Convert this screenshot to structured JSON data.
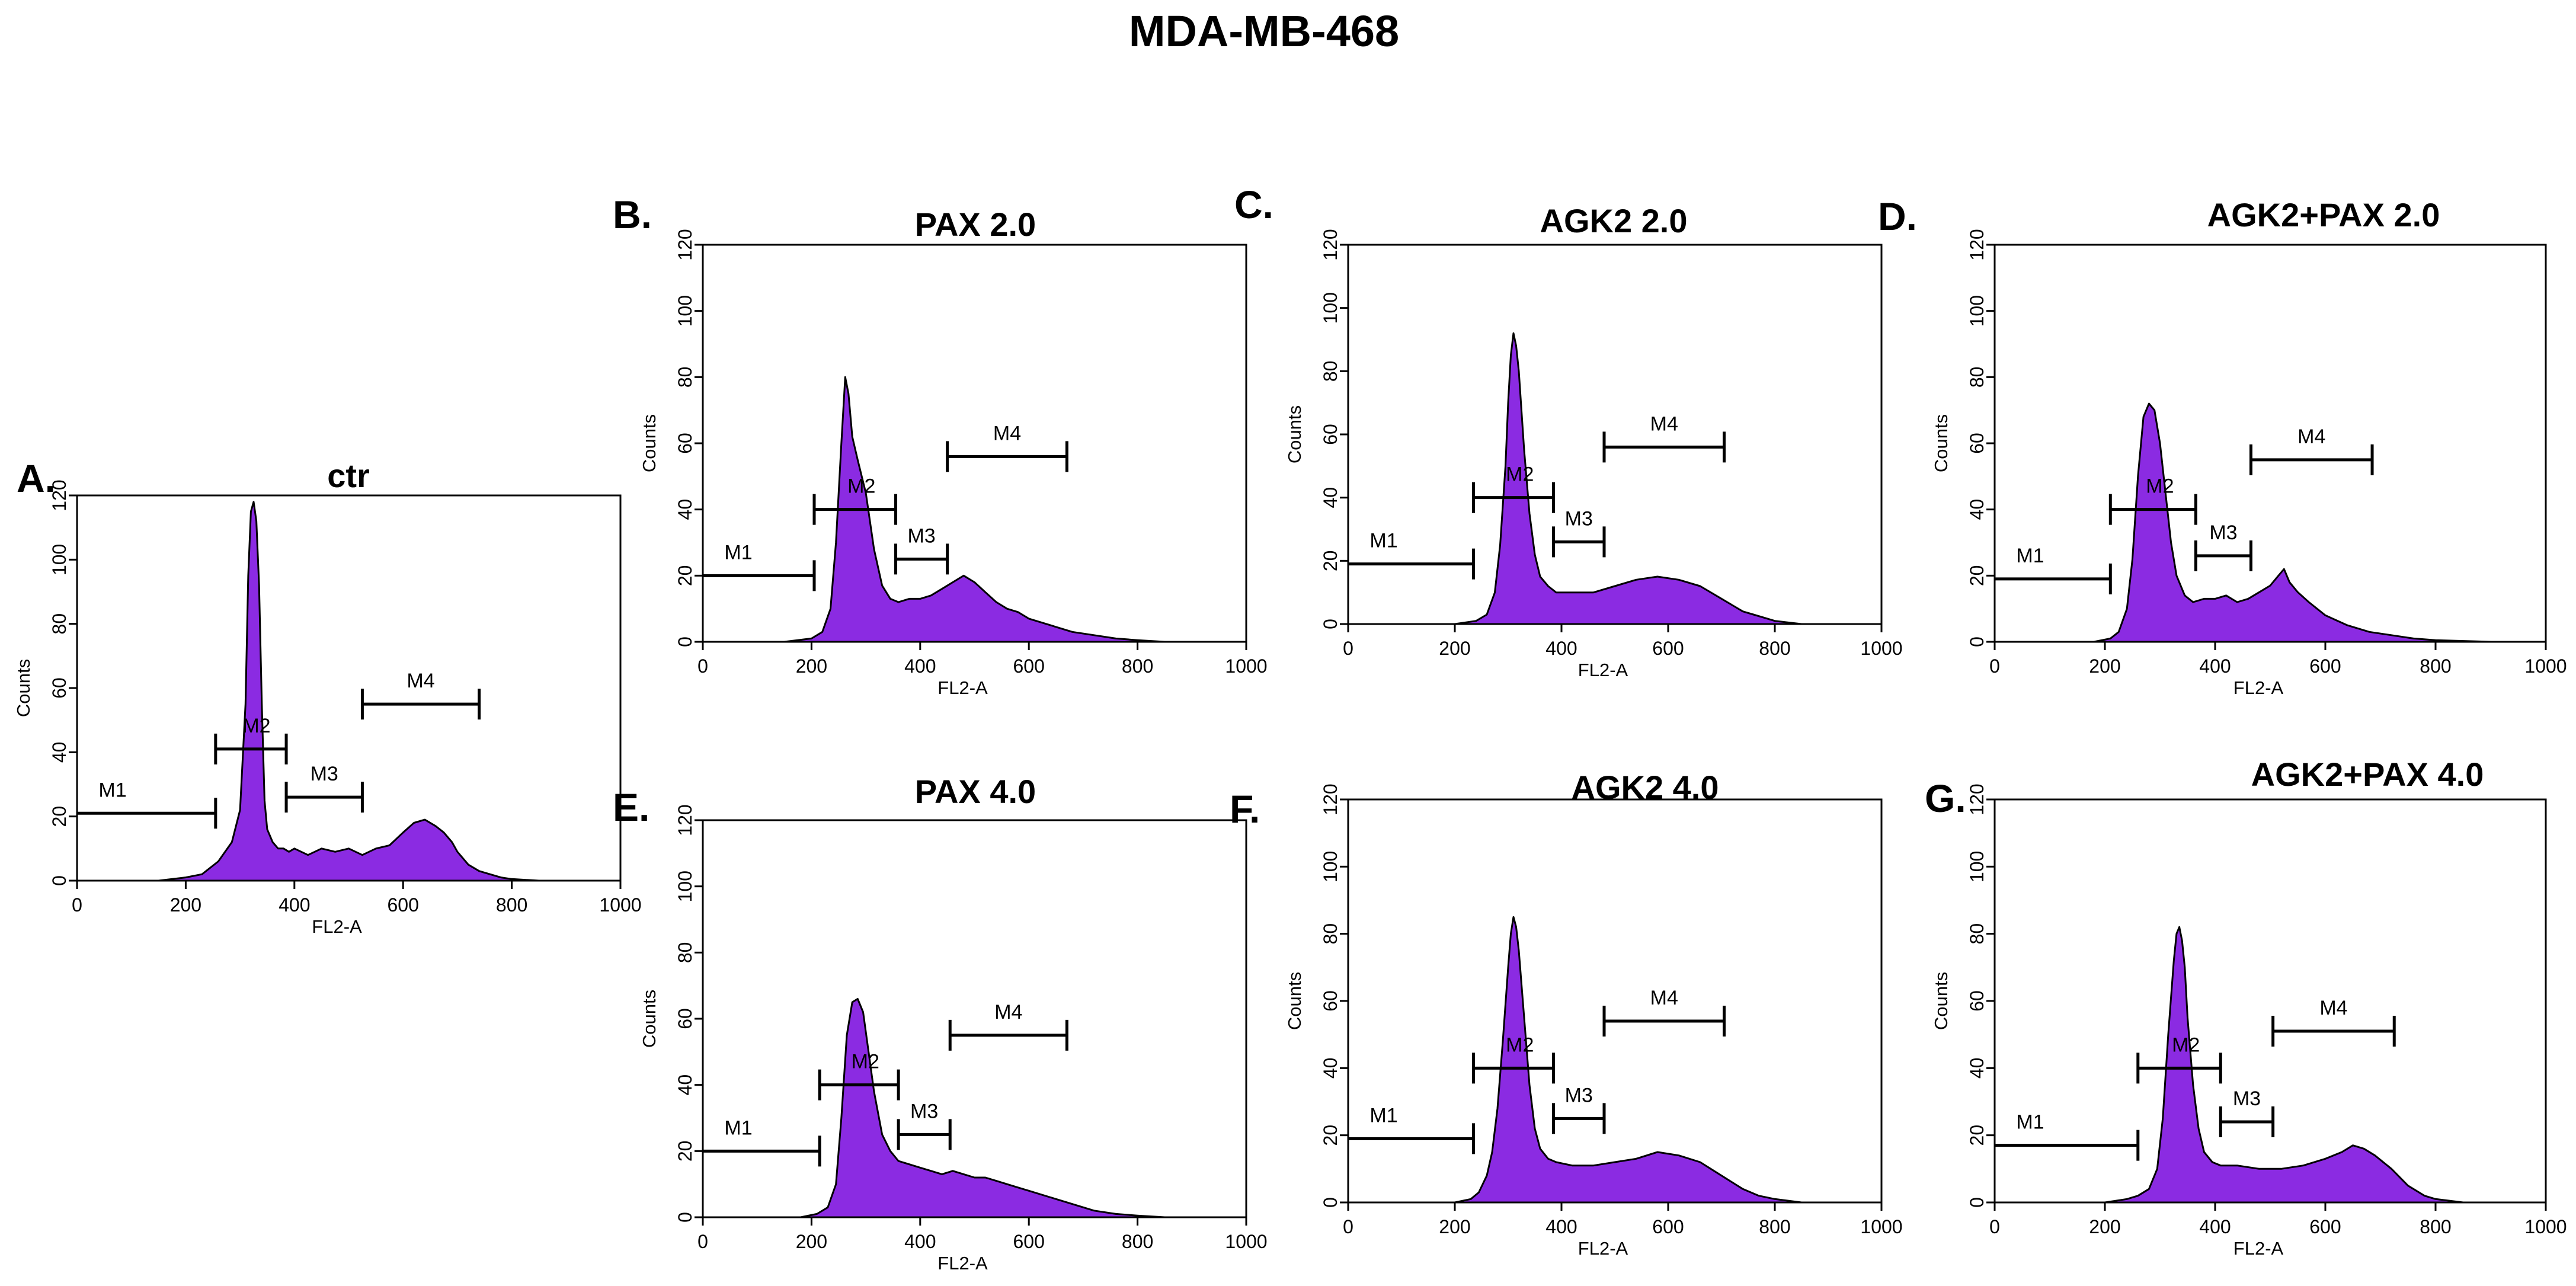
{
  "figure_title": "MDA-MB-468",
  "colors": {
    "fill": "#8B2BE2",
    "edge": "#000000",
    "background": "#ffffff"
  },
  "chart_data": [
    {
      "id": "A",
      "panel_label": "A.",
      "title": "ctr",
      "type": "area",
      "xlabel": "FL2-A",
      "ylabel": "Counts",
      "xlim": [
        0,
        1000
      ],
      "ylim": [
        0,
        120
      ],
      "xticks": [
        0,
        200,
        400,
        600,
        800,
        1000
      ],
      "yticks": [
        0,
        20,
        40,
        60,
        80,
        100,
        120
      ],
      "x": [
        150,
        200,
        230,
        260,
        285,
        300,
        310,
        315,
        320,
        325,
        330,
        335,
        340,
        345,
        350,
        360,
        370,
        380,
        390,
        400,
        425,
        450,
        475,
        500,
        525,
        550,
        575,
        600,
        620,
        640,
        660,
        675,
        690,
        700,
        720,
        740,
        760,
        780,
        800,
        850
      ],
      "values": [
        0,
        1,
        2,
        6,
        12,
        22,
        55,
        95,
        115,
        118,
        112,
        92,
        55,
        25,
        16,
        12,
        10,
        10,
        9,
        10,
        8,
        10,
        9,
        10,
        8,
        10,
        11,
        15,
        18,
        19,
        17,
        15,
        12,
        9,
        5,
        3,
        2,
        1,
        0.5,
        0
      ],
      "markers": [
        {
          "label": "M1",
          "start": 0,
          "end": 255,
          "level": 21
        },
        {
          "label": "M2",
          "start": 255,
          "end": 385,
          "level": 41
        },
        {
          "label": "M3",
          "start": 385,
          "end": 525,
          "level": 26
        },
        {
          "label": "M4",
          "start": 525,
          "end": 740,
          "level": 55
        }
      ]
    },
    {
      "id": "B",
      "panel_label": "B.",
      "title": "PAX 2.0",
      "type": "area",
      "xlabel": "FL2-A",
      "ylabel": "Counts",
      "xlim": [
        0,
        1000
      ],
      "ylim": [
        0,
        120
      ],
      "xticks": [
        0,
        200,
        400,
        600,
        800,
        1000
      ],
      "yticks": [
        0,
        20,
        40,
        60,
        80,
        100,
        120
      ],
      "x": [
        150,
        200,
        220,
        235,
        245,
        255,
        262,
        268,
        275,
        285,
        300,
        315,
        330,
        345,
        360,
        380,
        400,
        420,
        440,
        460,
        480,
        500,
        520,
        540,
        560,
        580,
        600,
        640,
        680,
        720,
        760,
        800,
        850
      ],
      "values": [
        0,
        1,
        3,
        10,
        30,
        60,
        80,
        75,
        62,
        55,
        45,
        28,
        17,
        13,
        12,
        13,
        13,
        14,
        16,
        18,
        20,
        18,
        15,
        12,
        10,
        9,
        7,
        5,
        3,
        2,
        1,
        0.5,
        0
      ],
      "markers": [
        {
          "label": "M1",
          "start": 0,
          "end": 205,
          "level": 20
        },
        {
          "label": "M2",
          "start": 205,
          "end": 355,
          "level": 40
        },
        {
          "label": "M3",
          "start": 355,
          "end": 450,
          "level": 25
        },
        {
          "label": "M4",
          "start": 450,
          "end": 670,
          "level": 56
        }
      ]
    },
    {
      "id": "C",
      "panel_label": "C.",
      "title": "AGK2 2.0",
      "type": "area",
      "xlabel": "FL2-A",
      "ylabel": "Counts",
      "xlim": [
        0,
        1000
      ],
      "ylim": [
        0,
        120
      ],
      "xticks": [
        0,
        200,
        400,
        600,
        800,
        1000
      ],
      "yticks": [
        0,
        20,
        40,
        60,
        80,
        100,
        120
      ],
      "x": [
        200,
        240,
        260,
        275,
        285,
        295,
        300,
        305,
        310,
        315,
        320,
        330,
        340,
        350,
        360,
        375,
        390,
        420,
        460,
        500,
        540,
        580,
        620,
        660,
        700,
        740,
        760,
        780,
        800,
        850
      ],
      "values": [
        0,
        1,
        3,
        10,
        25,
        50,
        70,
        85,
        92,
        88,
        80,
        55,
        35,
        22,
        15,
        12,
        10,
        10,
        10,
        12,
        14,
        15,
        14,
        12,
        8,
        4,
        3,
        2,
        1,
        0
      ],
      "markers": [
        {
          "label": "M1",
          "start": 0,
          "end": 235,
          "level": 19
        },
        {
          "label": "M2",
          "start": 235,
          "end": 385,
          "level": 40
        },
        {
          "label": "M3",
          "start": 385,
          "end": 480,
          "level": 26
        },
        {
          "label": "M4",
          "start": 480,
          "end": 705,
          "level": 56
        }
      ]
    },
    {
      "id": "D",
      "panel_label": "D.",
      "title": "AGK2+PAX 2.0",
      "type": "area",
      "xlabel": "FL2-A",
      "ylabel": "Counts",
      "xlim": [
        0,
        1000
      ],
      "ylim": [
        0,
        120
      ],
      "xticks": [
        0,
        200,
        400,
        600,
        800,
        1000
      ],
      "yticks": [
        0,
        20,
        40,
        60,
        80,
        100,
        120
      ],
      "x": [
        180,
        210,
        225,
        240,
        250,
        260,
        270,
        280,
        290,
        300,
        310,
        320,
        330,
        345,
        360,
        380,
        400,
        420,
        440,
        460,
        480,
        500,
        515,
        525,
        535,
        550,
        570,
        600,
        640,
        680,
        720,
        760,
        800,
        900
      ],
      "values": [
        0,
        1,
        3,
        10,
        25,
        50,
        68,
        72,
        70,
        60,
        45,
        30,
        20,
        14,
        12,
        13,
        13,
        14,
        12,
        13,
        15,
        17,
        20,
        22,
        18,
        15,
        12,
        8,
        5,
        3,
        2,
        1,
        0.5,
        0
      ],
      "markers": [
        {
          "label": "M1",
          "start": 0,
          "end": 210,
          "level": 19
        },
        {
          "label": "M2",
          "start": 210,
          "end": 365,
          "level": 40
        },
        {
          "label": "M3",
          "start": 365,
          "end": 465,
          "level": 26
        },
        {
          "label": "M4",
          "start": 465,
          "end": 685,
          "level": 55
        }
      ]
    },
    {
      "id": "E",
      "panel_label": "E.",
      "title": "PAX 4.0",
      "type": "area",
      "xlabel": "FL2-A",
      "ylabel": "Counts",
      "xlim": [
        0,
        1000
      ],
      "ylim": [
        0,
        120
      ],
      "xticks": [
        0,
        200,
        400,
        600,
        800,
        1000
      ],
      "yticks": [
        0,
        20,
        40,
        60,
        80,
        100,
        120
      ],
      "x": [
        180,
        210,
        230,
        245,
        255,
        265,
        275,
        285,
        295,
        305,
        315,
        330,
        345,
        360,
        380,
        400,
        420,
        440,
        460,
        480,
        500,
        520,
        540,
        560,
        580,
        600,
        640,
        680,
        720,
        760,
        800,
        850
      ],
      "values": [
        0,
        1,
        3,
        10,
        30,
        55,
        65,
        66,
        62,
        50,
        38,
        25,
        20,
        17,
        16,
        15,
        14,
        13,
        14,
        13,
        12,
        12,
        11,
        10,
        9,
        8,
        6,
        4,
        2,
        1,
        0.5,
        0
      ],
      "markers": [
        {
          "label": "M1",
          "start": 0,
          "end": 215,
          "level": 20
        },
        {
          "label": "M2",
          "start": 215,
          "end": 360,
          "level": 40
        },
        {
          "label": "M3",
          "start": 360,
          "end": 455,
          "level": 25
        },
        {
          "label": "M4",
          "start": 455,
          "end": 670,
          "level": 55
        }
      ]
    },
    {
      "id": "F",
      "panel_label": "F.",
      "title": "AGK2 4.0",
      "type": "area",
      "xlabel": "FL2-A",
      "ylabel": "Counts",
      "xlim": [
        0,
        1000
      ],
      "ylim": [
        0,
        120
      ],
      "xticks": [
        0,
        200,
        400,
        600,
        800,
        1000
      ],
      "yticks": [
        0,
        20,
        40,
        60,
        80,
        100,
        120
      ],
      "x": [
        200,
        230,
        245,
        260,
        270,
        280,
        290,
        300,
        305,
        310,
        315,
        320,
        330,
        340,
        350,
        360,
        375,
        390,
        420,
        460,
        500,
        540,
        580,
        620,
        660,
        700,
        740,
        770,
        800,
        850
      ],
      "values": [
        0,
        1,
        3,
        8,
        15,
        28,
        48,
        70,
        80,
        85,
        82,
        75,
        55,
        35,
        22,
        16,
        13,
        12,
        11,
        11,
        12,
        13,
        15,
        14,
        12,
        8,
        4,
        2,
        1,
        0
      ],
      "markers": [
        {
          "label": "M1",
          "start": 0,
          "end": 235,
          "level": 19
        },
        {
          "label": "M2",
          "start": 235,
          "end": 385,
          "level": 40
        },
        {
          "label": "M3",
          "start": 385,
          "end": 480,
          "level": 25
        },
        {
          "label": "M4",
          "start": 480,
          "end": 705,
          "level": 54
        }
      ]
    },
    {
      "id": "G",
      "panel_label": "G.",
      "title": "AGK2+PAX 4.0",
      "type": "area",
      "xlabel": "FL2-A",
      "ylabel": "Counts",
      "xlim": [
        0,
        1000
      ],
      "ylim": [
        0,
        120
      ],
      "xticks": [
        0,
        200,
        400,
        600,
        800,
        1000
      ],
      "yticks": [
        0,
        20,
        40,
        60,
        80,
        100,
        120
      ],
      "x": [
        200,
        240,
        260,
        280,
        295,
        305,
        315,
        325,
        330,
        335,
        340,
        345,
        350,
        360,
        370,
        380,
        395,
        410,
        440,
        480,
        520,
        560,
        600,
        630,
        650,
        670,
        690,
        720,
        750,
        780,
        800,
        850
      ],
      "values": [
        0,
        1,
        2,
        4,
        10,
        25,
        50,
        72,
        80,
        82,
        78,
        70,
        55,
        35,
        22,
        15,
        12,
        11,
        11,
        10,
        10,
        11,
        13,
        15,
        17,
        16,
        14,
        10,
        5,
        2,
        1,
        0
      ],
      "markers": [
        {
          "label": "M1",
          "start": 0,
          "end": 260,
          "level": 17
        },
        {
          "label": "M2",
          "start": 260,
          "end": 410,
          "level": 40
        },
        {
          "label": "M3",
          "start": 410,
          "end": 505,
          "level": 24
        },
        {
          "label": "M4",
          "start": 505,
          "end": 725,
          "level": 51
        }
      ]
    }
  ]
}
